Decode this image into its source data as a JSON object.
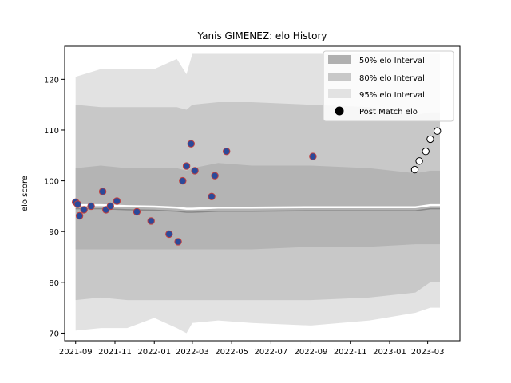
{
  "chart_data": {
    "type": "scatter",
    "title": "Yanis GIMENEZ: elo History",
    "xlabel": "",
    "ylabel": "elo score",
    "xlim": [
      "2021-08-15",
      "2023-04-20"
    ],
    "ylim": [
      68.5,
      126.5
    ],
    "x_tick_labels": [
      "2021-09",
      "2021-11",
      "2022-01",
      "2022-03",
      "2022-05",
      "2022-07",
      "2022-09",
      "2022-11",
      "2023-01",
      "2023-03"
    ],
    "x_tick_dates": [
      "2021-09-01",
      "2021-11-01",
      "2022-01-01",
      "2022-03-01",
      "2022-05-01",
      "2022-07-01",
      "2022-09-01",
      "2022-11-01",
      "2023-01-01",
      "2023-03-01"
    ],
    "y_ticks": [
      70,
      80,
      90,
      100,
      110,
      120
    ],
    "grid": false,
    "legend_position": "top-right",
    "legend": [
      {
        "label": "50% elo Interval",
        "kind": "band",
        "color": "#b0b0b0"
      },
      {
        "label": "80% elo Interval",
        "kind": "band",
        "color": "#c8c8c8"
      },
      {
        "label": "95% elo Interval",
        "kind": "band",
        "color": "#e2e2e2"
      },
      {
        "label": "Post Match elo",
        "kind": "marker",
        "color": "#000000"
      }
    ],
    "bands": {
      "x": [
        "2021-09-01",
        "2021-10-10",
        "2021-11-20",
        "2022-01-01",
        "2022-02-05",
        "2022-02-20",
        "2022-03-01",
        "2022-04-10",
        "2022-06-01",
        "2022-09-01",
        "2022-12-01",
        "2023-02-10",
        "2023-03-05",
        "2023-03-20"
      ],
      "p95_upper": [
        120.5,
        122.0,
        122.0,
        122.0,
        124.0,
        121.0,
        125.0,
        125.0,
        125.0,
        125.0,
        125.0,
        125.0,
        125.0,
        125.0
      ],
      "p80_upper": [
        115.0,
        114.5,
        114.5,
        114.5,
        114.5,
        114.0,
        115.0,
        115.5,
        115.5,
        115.0,
        114.5,
        113.0,
        113.5,
        113.5
      ],
      "p50_upper": [
        102.5,
        103.0,
        102.5,
        102.5,
        102.5,
        102.0,
        102.5,
        103.5,
        103.0,
        103.0,
        102.5,
        101.5,
        102.0,
        102.0
      ],
      "median": [
        94.5,
        94.5,
        94.3,
        94.2,
        94.0,
        93.8,
        93.8,
        94.0,
        94.0,
        94.1,
        94.1,
        94.1,
        94.5,
        94.5
      ],
      "p50_lower": [
        86.5,
        86.5,
        86.5,
        86.5,
        86.5,
        86.5,
        86.5,
        86.5,
        86.5,
        87.0,
        87.0,
        87.5,
        87.5,
        87.5
      ],
      "p80_lower": [
        76.5,
        77.0,
        76.5,
        76.5,
        76.5,
        76.5,
        76.5,
        76.5,
        76.5,
        76.5,
        77.0,
        78.0,
        80.0,
        80.0
      ],
      "p95_lower": [
        70.5,
        71.0,
        71.0,
        73.0,
        71.0,
        70.0,
        72.0,
        72.5,
        72.0,
        71.5,
        72.5,
        74.0,
        75.0,
        75.0
      ]
    },
    "series": [
      {
        "name": "Post Match elo",
        "style": "historical",
        "face_color": "#2b4a9a",
        "edge_color": "#c04040",
        "points": [
          {
            "x": "2021-09-01",
            "y": 95.8
          },
          {
            "x": "2021-09-04",
            "y": 95.4
          },
          {
            "x": "2021-09-07",
            "y": 93.1
          },
          {
            "x": "2021-09-14",
            "y": 94.3
          },
          {
            "x": "2021-09-25",
            "y": 95.0
          },
          {
            "x": "2021-10-13",
            "y": 97.9
          },
          {
            "x": "2021-10-18",
            "y": 94.3
          },
          {
            "x": "2021-10-25",
            "y": 95.0
          },
          {
            "x": "2021-11-04",
            "y": 96.0
          },
          {
            "x": "2021-12-05",
            "y": 93.9
          },
          {
            "x": "2021-12-27",
            "y": 92.1
          },
          {
            "x": "2022-01-24",
            "y": 89.5
          },
          {
            "x": "2022-02-07",
            "y": 88.0
          },
          {
            "x": "2022-02-14",
            "y": 100.0
          },
          {
            "x": "2022-02-20",
            "y": 102.9
          },
          {
            "x": "2022-02-27",
            "y": 107.3
          },
          {
            "x": "2022-03-05",
            "y": 102.0
          },
          {
            "x": "2022-03-31",
            "y": 96.9
          },
          {
            "x": "2022-04-05",
            "y": 101.0
          },
          {
            "x": "2022-04-23",
            "y": 105.8
          },
          {
            "x": "2022-09-04",
            "y": 104.8
          }
        ]
      },
      {
        "name": "Post Match elo",
        "style": "recent",
        "face_color": "#ffffff",
        "edge_color": "#000000",
        "points": [
          {
            "x": "2023-02-09",
            "y": 102.2
          },
          {
            "x": "2023-02-16",
            "y": 103.9
          },
          {
            "x": "2023-02-26",
            "y": 105.8
          },
          {
            "x": "2023-03-05",
            "y": 108.2
          },
          {
            "x": "2023-03-16",
            "y": 109.8
          }
        ]
      }
    ]
  }
}
